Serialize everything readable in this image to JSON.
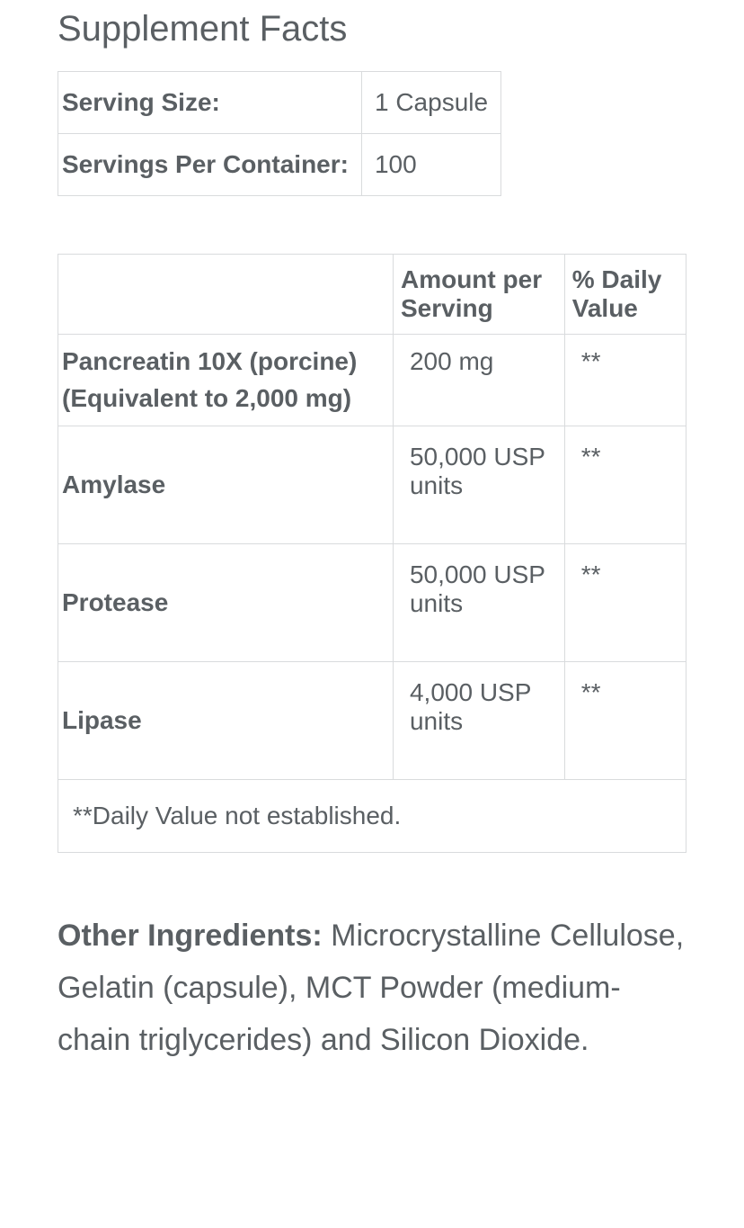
{
  "title": "Supplement Facts",
  "serving": {
    "size_label": "Serving Size:",
    "size_value": "1 Capsule",
    "per_container_label": "Servings Per Container:",
    "per_container_value": "100"
  },
  "facts": {
    "columns": {
      "amount": "Amount per Serving",
      "dv": "% Daily Value"
    },
    "rows": [
      {
        "name": "Pancreatin 10X (porcine) (Equivalent to 2,000 mg)",
        "amount": "200 mg",
        "dv": "**"
      },
      {
        "name": "Amylase",
        "amount": "50,000 USP units",
        "dv": "**"
      },
      {
        "name": "Protease",
        "amount": "50,000 USP units",
        "dv": "**"
      },
      {
        "name": "Lipase",
        "amount": "4,000 USP units",
        "dv": "**"
      }
    ],
    "footnote": "**Daily Value not established."
  },
  "other": {
    "label": "Other Ingredients: ",
    "text": "Microcrystalline Cellulose, Gelatin (capsule), MCT Powder (medium-chain triglycerides) and Silicon Dioxide."
  },
  "style": {
    "text_color": "#5a5f63",
    "border_color": "#d9dbdd",
    "title_fontsize": 40,
    "body_fontsize": 28,
    "other_fontsize": 34
  }
}
